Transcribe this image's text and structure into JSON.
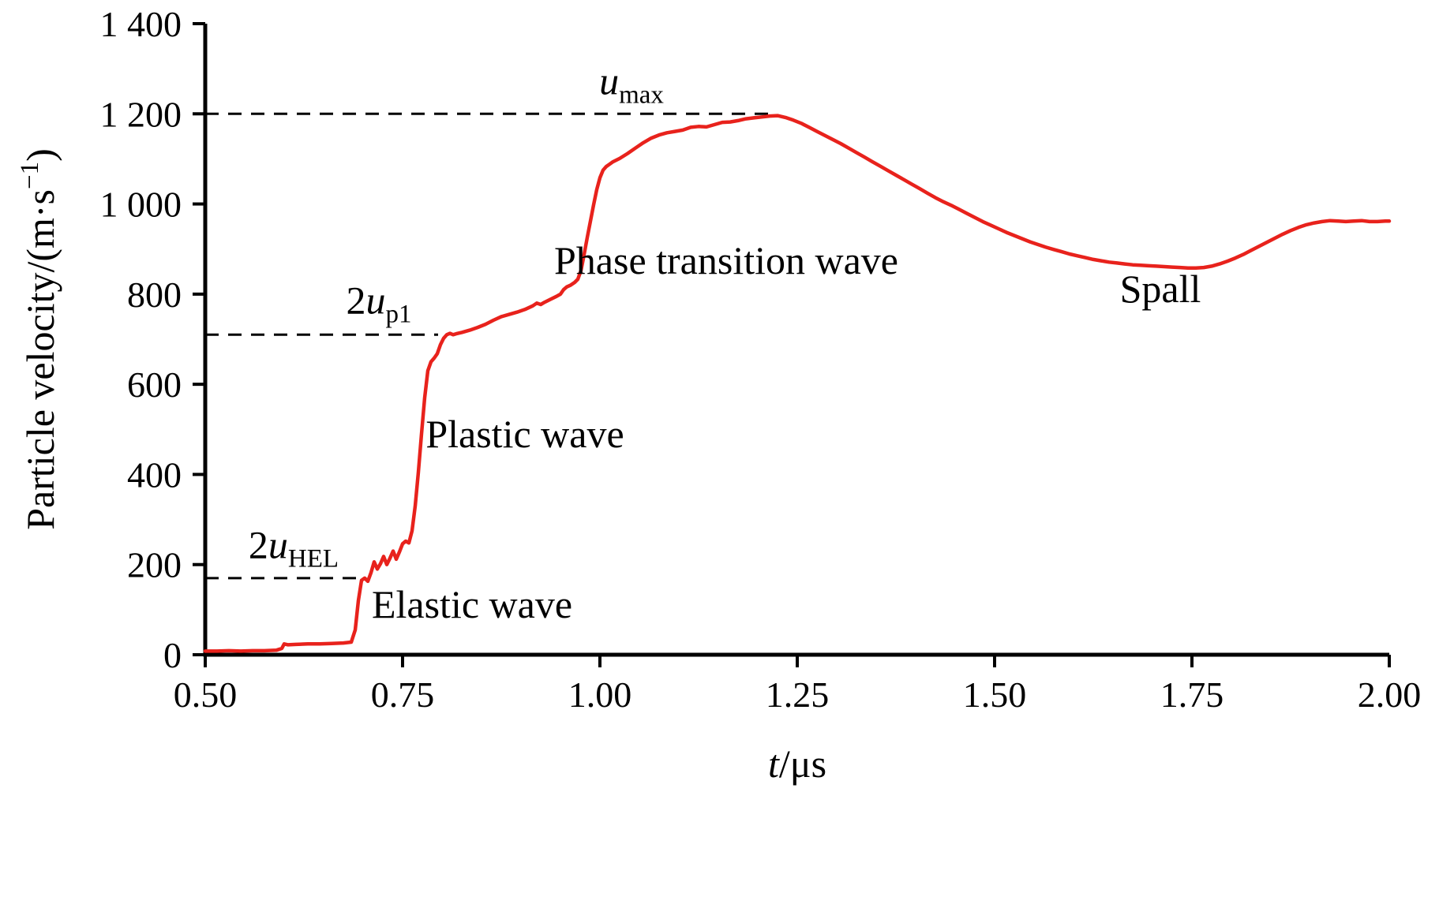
{
  "figure": {
    "description": "Free-surface particle velocity history showing elastic wave, plastic wave, phase transition wave and spall signal"
  },
  "chart_data": {
    "type": "line",
    "title": "",
    "xlabel_parts": [
      {
        "text": "t",
        "italic": true
      },
      {
        "text": "/μs"
      }
    ],
    "ylabel_parts": [
      {
        "text": "Particle velocity/(m·s"
      },
      {
        "text": "−1",
        "sup": true
      },
      {
        "text": ")"
      }
    ],
    "xlim": [
      0.5,
      2.0
    ],
    "ylim": [
      0,
      1400
    ],
    "grid": false,
    "legend": "none",
    "line_color": "#e8221c",
    "axis_color": "#000000",
    "x_ticks": [
      {
        "value": 0.5,
        "label": "0.50"
      },
      {
        "value": 0.75,
        "label": "0.75"
      },
      {
        "value": 1.0,
        "label": "1.00"
      },
      {
        "value": 1.25,
        "label": "1.25"
      },
      {
        "value": 1.5,
        "label": "1.50"
      },
      {
        "value": 1.75,
        "label": "1.75"
      },
      {
        "value": 2.0,
        "label": "2.00"
      }
    ],
    "y_ticks": [
      {
        "value": 0,
        "label": "0"
      },
      {
        "value": 200,
        "label": "200"
      },
      {
        "value": 400,
        "label": "400"
      },
      {
        "value": 600,
        "label": "600"
      },
      {
        "value": 800,
        "label": "800"
      },
      {
        "value": 1000,
        "label": "1 000"
      },
      {
        "value": 1200,
        "label": "1 200"
      },
      {
        "value": 1400,
        "label": "1 400"
      }
    ],
    "reference_lines": [
      {
        "id": "umax-dashed-line",
        "y": 1200,
        "x_start": 0.5,
        "x_end": 1.225,
        "style": "dashed"
      },
      {
        "id": "2up1-dashed-line",
        "y": 710,
        "x_start": 0.5,
        "x_end": 0.795,
        "style": "dashed"
      },
      {
        "id": "2uhel-dashed-line",
        "y": 170,
        "x_start": 0.5,
        "x_end": 0.695,
        "style": "dashed"
      }
    ],
    "annotations": [
      {
        "id": "u-max-label",
        "x": 1.04,
        "y": 1243,
        "anchor": "middle",
        "size": 50,
        "parts": [
          {
            "text": "u",
            "italic": true
          },
          {
            "text": "max",
            "sub": true
          }
        ]
      },
      {
        "id": "2up1-label",
        "x": 0.72,
        "y": 757,
        "anchor": "middle",
        "size": 50,
        "parts": [
          {
            "text": "2"
          },
          {
            "text": "u",
            "italic": true
          },
          {
            "text": "p1",
            "sub": true
          }
        ]
      },
      {
        "id": "2uhel-label",
        "x": 0.612,
        "y": 214,
        "anchor": "middle",
        "size": 50,
        "parts": [
          {
            "text": "2"
          },
          {
            "text": "u",
            "italic": true
          },
          {
            "text": "HEL",
            "sub": true
          }
        ]
      },
      {
        "id": "elastic-wave-label",
        "x": 0.838,
        "y": 82,
        "anchor": "middle",
        "size": 50,
        "parts": [
          {
            "text": "Elastic wave"
          }
        ]
      },
      {
        "id": "plastic-wave-label",
        "x": 0.905,
        "y": 460,
        "anchor": "middle",
        "size": 50,
        "parts": [
          {
            "text": "Plastic wave"
          }
        ]
      },
      {
        "id": "phase-transition-wave-label",
        "x": 1.16,
        "y": 845,
        "anchor": "middle",
        "size": 50,
        "parts": [
          {
            "text": "Phase transition wave"
          }
        ]
      },
      {
        "id": "spall-label",
        "x": 1.71,
        "y": 782,
        "anchor": "middle",
        "size": 50,
        "parts": [
          {
            "text": "Spall"
          }
        ]
      }
    ],
    "series": [
      {
        "name": "free-surface particle velocity",
        "points": [
          [
            0.5,
            8
          ],
          [
            0.515,
            8
          ],
          [
            0.53,
            9
          ],
          [
            0.545,
            8
          ],
          [
            0.56,
            9
          ],
          [
            0.575,
            9
          ],
          [
            0.59,
            10
          ],
          [
            0.597,
            14
          ],
          [
            0.6,
            24
          ],
          [
            0.605,
            22
          ],
          [
            0.615,
            23
          ],
          [
            0.63,
            24
          ],
          [
            0.645,
            24
          ],
          [
            0.66,
            25
          ],
          [
            0.675,
            26
          ],
          [
            0.685,
            28
          ],
          [
            0.69,
            55
          ],
          [
            0.694,
            120
          ],
          [
            0.698,
            165
          ],
          [
            0.702,
            170
          ],
          [
            0.706,
            163
          ],
          [
            0.71,
            182
          ],
          [
            0.714,
            206
          ],
          [
            0.718,
            190
          ],
          [
            0.722,
            202
          ],
          [
            0.726,
            218
          ],
          [
            0.73,
            200
          ],
          [
            0.734,
            214
          ],
          [
            0.738,
            230
          ],
          [
            0.742,
            212
          ],
          [
            0.746,
            228
          ],
          [
            0.75,
            246
          ],
          [
            0.754,
            252
          ],
          [
            0.758,
            248
          ],
          [
            0.762,
            275
          ],
          [
            0.766,
            330
          ],
          [
            0.77,
            405
          ],
          [
            0.774,
            490
          ],
          [
            0.778,
            570
          ],
          [
            0.782,
            630
          ],
          [
            0.786,
            650
          ],
          [
            0.79,
            658
          ],
          [
            0.794,
            668
          ],
          [
            0.798,
            688
          ],
          [
            0.802,
            702
          ],
          [
            0.806,
            710
          ],
          [
            0.81,
            713
          ],
          [
            0.814,
            710
          ],
          [
            0.818,
            712
          ],
          [
            0.825,
            715
          ],
          [
            0.835,
            720
          ],
          [
            0.845,
            726
          ],
          [
            0.855,
            733
          ],
          [
            0.865,
            742
          ],
          [
            0.875,
            750
          ],
          [
            0.885,
            755
          ],
          [
            0.895,
            760
          ],
          [
            0.905,
            766
          ],
          [
            0.915,
            774
          ],
          [
            0.92,
            780
          ],
          [
            0.925,
            777
          ],
          [
            0.93,
            782
          ],
          [
            0.938,
            789
          ],
          [
            0.945,
            795
          ],
          [
            0.95,
            800
          ],
          [
            0.954,
            810
          ],
          [
            0.958,
            816
          ],
          [
            0.963,
            820
          ],
          [
            0.968,
            826
          ],
          [
            0.972,
            833
          ],
          [
            0.976,
            852
          ],
          [
            0.98,
            888
          ],
          [
            0.984,
            926
          ],
          [
            0.988,
            962
          ],
          [
            0.992,
            998
          ],
          [
            0.996,
            1032
          ],
          [
            1.0,
            1058
          ],
          [
            1.004,
            1075
          ],
          [
            1.008,
            1083
          ],
          [
            1.012,
            1088
          ],
          [
            1.016,
            1093
          ],
          [
            1.025,
            1101
          ],
          [
            1.035,
            1112
          ],
          [
            1.045,
            1124
          ],
          [
            1.055,
            1136
          ],
          [
            1.065,
            1146
          ],
          [
            1.075,
            1153
          ],
          [
            1.085,
            1158
          ],
          [
            1.095,
            1161
          ],
          [
            1.105,
            1164
          ],
          [
            1.115,
            1170
          ],
          [
            1.125,
            1172
          ],
          [
            1.135,
            1171
          ],
          [
            1.145,
            1176
          ],
          [
            1.155,
            1181
          ],
          [
            1.165,
            1182
          ],
          [
            1.175,
            1185
          ],
          [
            1.185,
            1189
          ],
          [
            1.195,
            1191
          ],
          [
            1.205,
            1193
          ],
          [
            1.215,
            1195
          ],
          [
            1.225,
            1196
          ],
          [
            1.235,
            1192
          ],
          [
            1.245,
            1186
          ],
          [
            1.255,
            1179
          ],
          [
            1.265,
            1170
          ],
          [
            1.275,
            1161
          ],
          [
            1.285,
            1152
          ],
          [
            1.295,
            1143
          ],
          [
            1.305,
            1134
          ],
          [
            1.315,
            1124
          ],
          [
            1.325,
            1114
          ],
          [
            1.335,
            1104
          ],
          [
            1.345,
            1094
          ],
          [
            1.355,
            1084
          ],
          [
            1.365,
            1074
          ],
          [
            1.375,
            1064
          ],
          [
            1.385,
            1054
          ],
          [
            1.395,
            1044
          ],
          [
            1.405,
            1034
          ],
          [
            1.415,
            1024
          ],
          [
            1.425,
            1014
          ],
          [
            1.435,
            1005
          ],
          [
            1.445,
            997
          ],
          [
            1.455,
            988
          ],
          [
            1.465,
            979
          ],
          [
            1.475,
            970
          ],
          [
            1.485,
            961
          ],
          [
            1.495,
            953
          ],
          [
            1.505,
            945
          ],
          [
            1.515,
            937
          ],
          [
            1.525,
            930
          ],
          [
            1.535,
            923
          ],
          [
            1.545,
            916
          ],
          [
            1.555,
            910
          ],
          [
            1.565,
            904
          ],
          [
            1.575,
            899
          ],
          [
            1.585,
            894
          ],
          [
            1.595,
            889
          ],
          [
            1.605,
            885
          ],
          [
            1.615,
            881
          ],
          [
            1.625,
            877
          ],
          [
            1.635,
            874
          ],
          [
            1.645,
            871
          ],
          [
            1.655,
            869
          ],
          [
            1.665,
            867
          ],
          [
            1.675,
            865
          ],
          [
            1.685,
            864
          ],
          [
            1.695,
            863
          ],
          [
            1.705,
            862
          ],
          [
            1.715,
            861
          ],
          [
            1.725,
            860
          ],
          [
            1.735,
            859
          ],
          [
            1.745,
            858
          ],
          [
            1.755,
            858
          ],
          [
            1.765,
            859
          ],
          [
            1.775,
            862
          ],
          [
            1.785,
            867
          ],
          [
            1.795,
            873
          ],
          [
            1.805,
            880
          ],
          [
            1.815,
            888
          ],
          [
            1.825,
            897
          ],
          [
            1.835,
            906
          ],
          [
            1.845,
            915
          ],
          [
            1.855,
            924
          ],
          [
            1.865,
            933
          ],
          [
            1.875,
            941
          ],
          [
            1.885,
            948
          ],
          [
            1.895,
            954
          ],
          [
            1.905,
            958
          ],
          [
            1.915,
            961
          ],
          [
            1.925,
            963
          ],
          [
            1.935,
            962
          ],
          [
            1.945,
            961
          ],
          [
            1.955,
            962
          ],
          [
            1.965,
            963
          ],
          [
            1.975,
            961
          ],
          [
            1.985,
            961
          ],
          [
            1.995,
            962
          ],
          [
            2.0,
            962
          ]
        ]
      }
    ]
  }
}
